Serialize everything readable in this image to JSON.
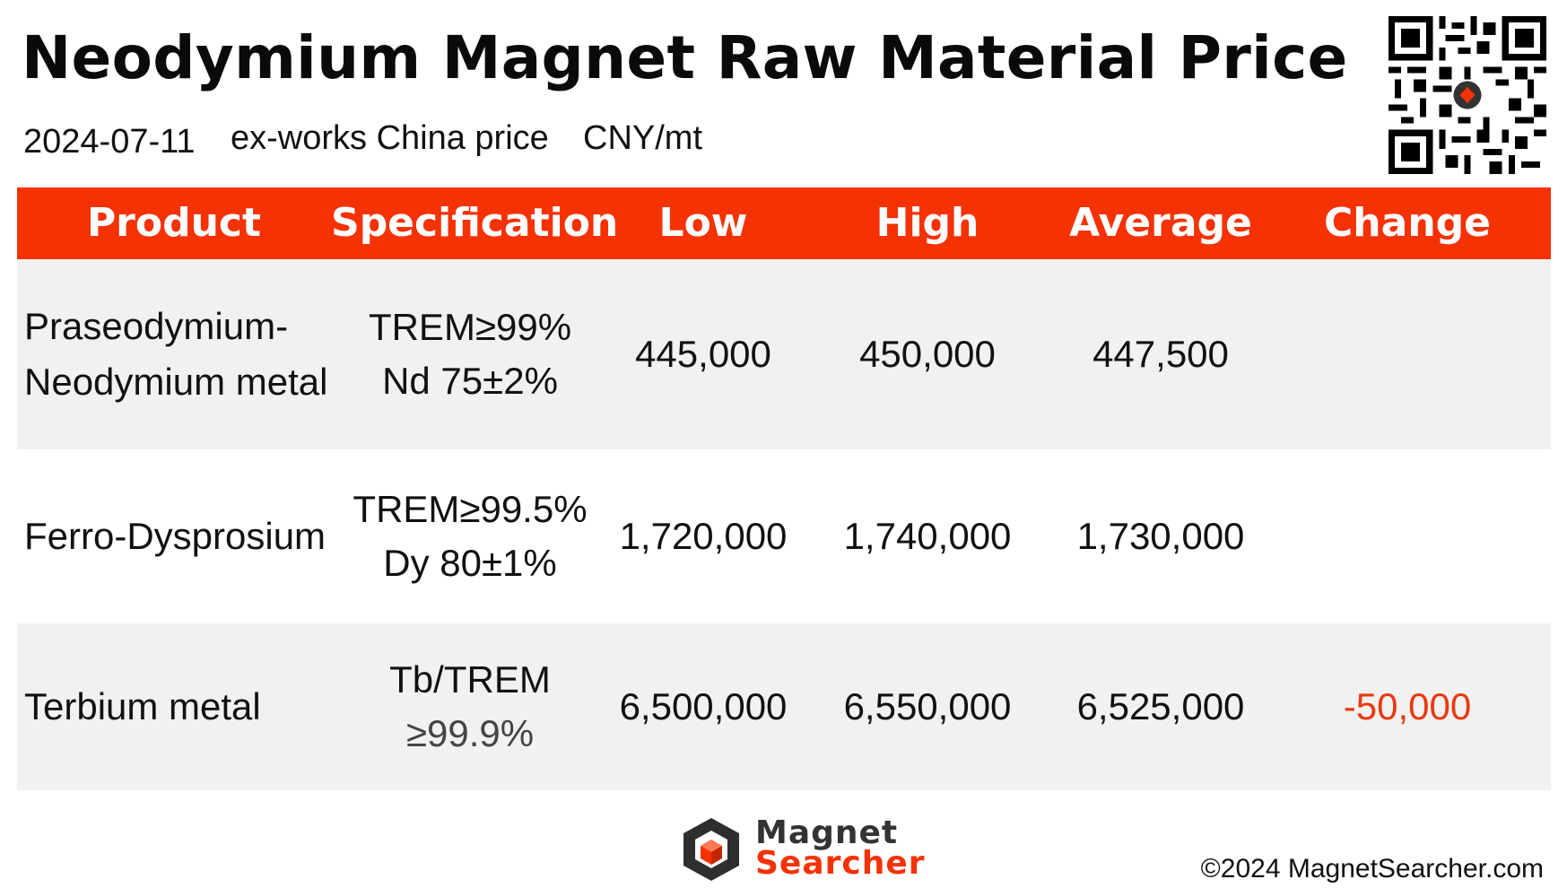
{
  "header": {
    "title": "Neodymium Magnet Raw Material Price",
    "date": "2024-07-11",
    "basis": "ex-works China price",
    "unit": "CNY/mt"
  },
  "table": {
    "columns": [
      "Product",
      "Specification",
      "Low",
      "High",
      "Average",
      "Change"
    ],
    "rows": [
      {
        "product_line1": "Praseodymium-",
        "product_line2": "Neodymium metal",
        "spec_line1": "TREM≥99%",
        "spec_line2": "Nd 75±2%",
        "low": "445,000",
        "high": "450,000",
        "average": "447,500",
        "change": ""
      },
      {
        "product_line1": "Ferro-Dysprosium",
        "product_line2": "",
        "spec_line1": "TREM≥99.5%",
        "spec_line2": "Dy 80±1%",
        "low": "1,720,000",
        "high": "1,740,000",
        "average": "1,730,000",
        "change": ""
      },
      {
        "product_line1": "Terbium metal",
        "product_line2": "",
        "spec_line1": "Tb/TREM",
        "spec_line2": "≥99.9%",
        "low": "6,500,000",
        "high": "6,550,000",
        "average": "6,525,000",
        "change": "-50,000"
      }
    ]
  },
  "footer": {
    "brand_line1": "Magnet",
    "brand_line2": "Searcher",
    "copyright": "©2024 MagnetSearcher.com"
  },
  "colors": {
    "header_bg": "#f43204",
    "negative_change": "#e8390e",
    "row_gray": "#f1f1f1"
  },
  "icons": [
    "qr-code-icon",
    "magnet-searcher-logo-icon"
  ]
}
